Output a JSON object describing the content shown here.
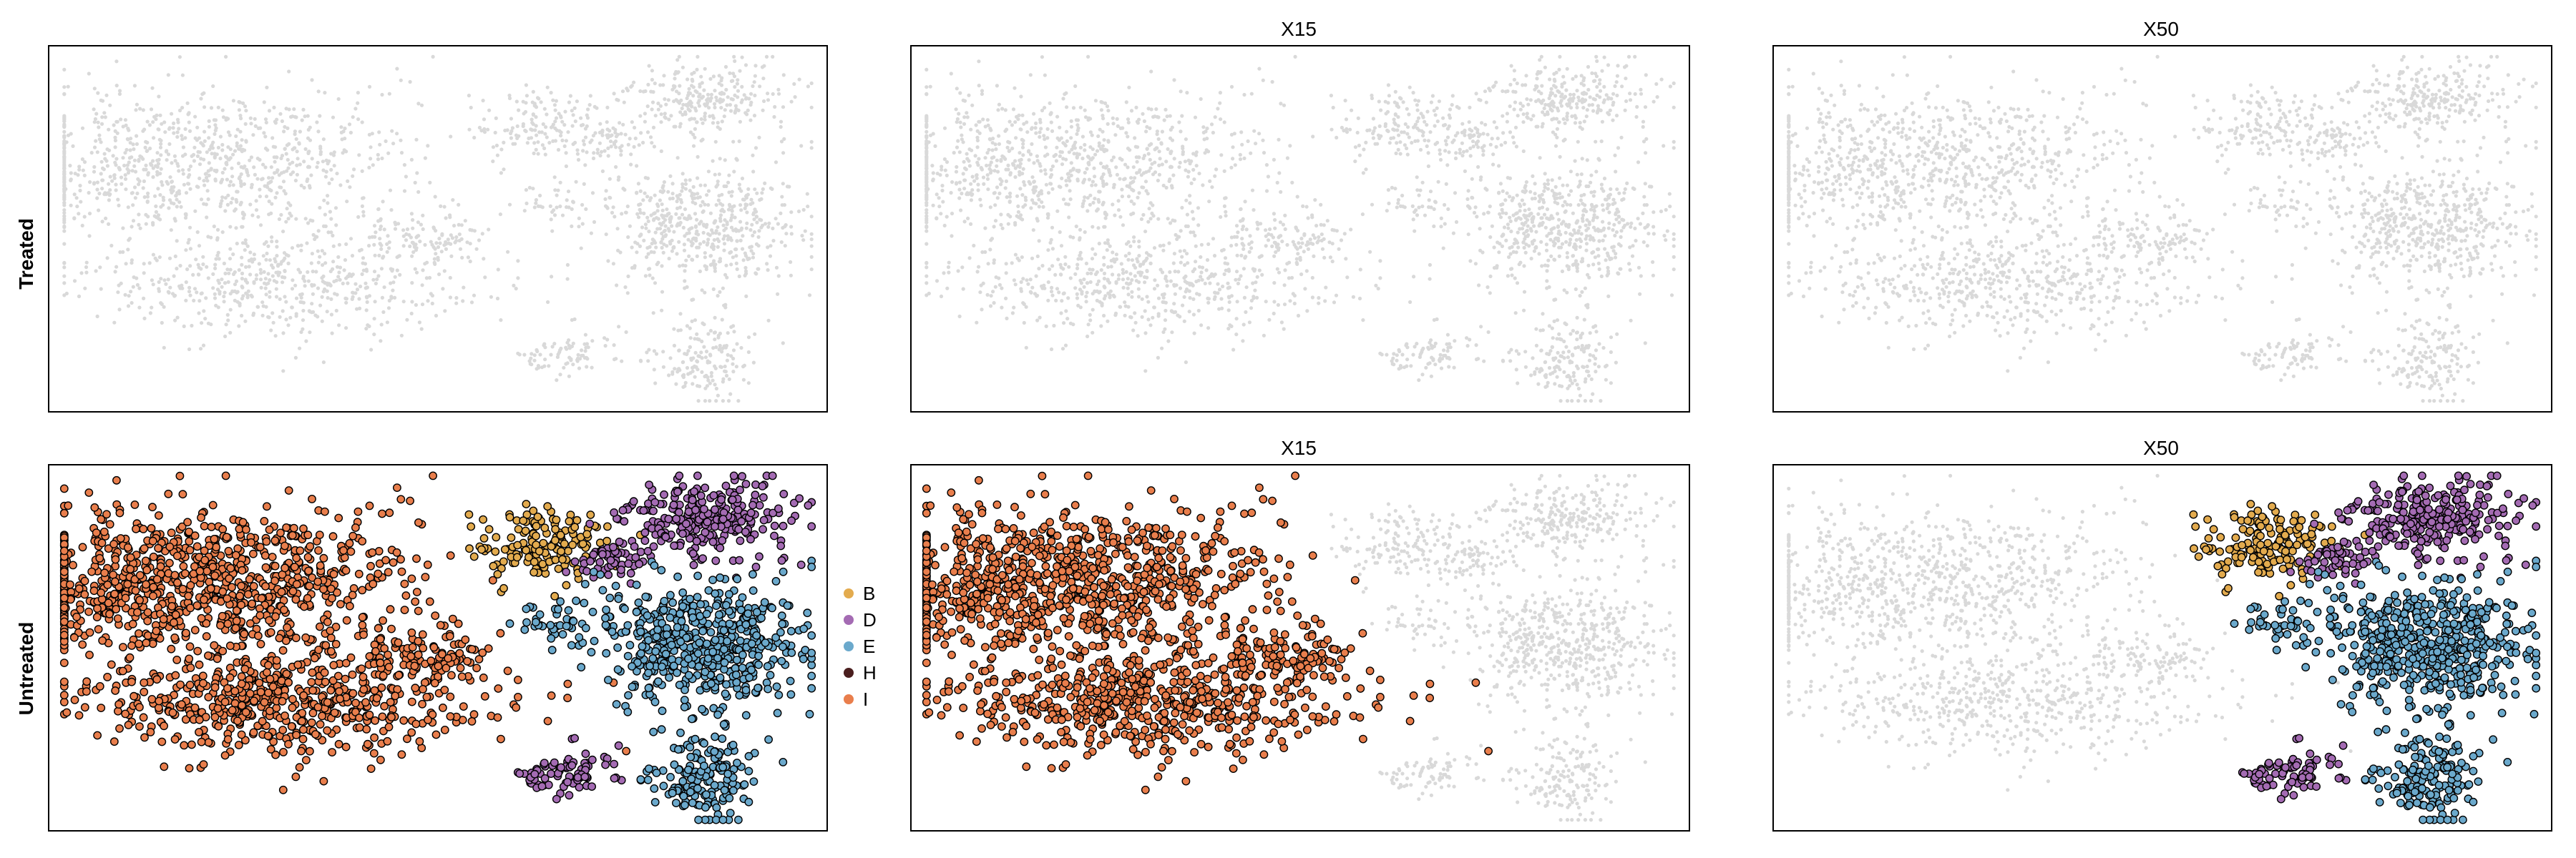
{
  "chart_data": {
    "type": "scatter",
    "description_style": "faceted UMAP-like scatter; grey background cells, colored clusters",
    "row_labels": [
      "Treated",
      "Untreated"
    ],
    "column_titles": [
      "",
      "X15",
      "X50"
    ],
    "legend": {
      "placement": "right-of-first-untreated-panel",
      "entries": [
        {
          "name": "B",
          "color": "#E3AB4E"
        },
        {
          "name": "D",
          "color": "#A46BB3"
        },
        {
          "name": "E",
          "color": "#6BA9CC"
        },
        {
          "name": "H",
          "color": "#4A1E1E"
        },
        {
          "name": "I",
          "color": "#E97E4C"
        }
      ]
    },
    "background_color": "#D9D9D9",
    "axes": {
      "xlim": [
        0,
        100
      ],
      "ylim": [
        0,
        100
      ],
      "ticks": false,
      "grid": false
    },
    "clusters": [
      {
        "id": "I_upper",
        "cx": 20,
        "cy": 68,
        "sx": 14,
        "sy": 10,
        "n": 900,
        "group": "I"
      },
      {
        "id": "I_lower",
        "cx": 30,
        "cy": 35,
        "sx": 13,
        "sy": 7.5,
        "n": 560,
        "group": "I"
      },
      {
        "id": "I_bridge",
        "cx": 48,
        "cy": 47,
        "sx": 4.5,
        "sy": 4,
        "n": 110,
        "group": "I"
      },
      {
        "id": "B_top",
        "cx": 63,
        "cy": 78,
        "sx": 4.5,
        "sy": 5,
        "n": 150,
        "group": "B"
      },
      {
        "id": "D_top",
        "cx": 72,
        "cy": 74,
        "sx": 3,
        "sy": 3,
        "n": 60,
        "group": "D"
      },
      {
        "id": "D_right",
        "cx": 85,
        "cy": 85,
        "sx": 5.5,
        "sy": 5.5,
        "n": 260,
        "group": "D"
      },
      {
        "id": "E_big",
        "cx": 84,
        "cy": 51,
        "sx": 6.5,
        "sy": 8,
        "n": 540,
        "group": "E"
      },
      {
        "id": "E_link",
        "cx": 66,
        "cy": 57,
        "sx": 2.5,
        "sy": 3,
        "n": 40,
        "group": "E"
      },
      {
        "id": "D_bottom",
        "cx": 66,
        "cy": 16,
        "sx": 3.5,
        "sy": 3.5,
        "n": 80,
        "group": "D"
      },
      {
        "id": "E_bottom",
        "cx": 84,
        "cy": 15,
        "sx": 3.5,
        "sy": 6.5,
        "n": 170,
        "group": "E"
      }
    ],
    "panels": [
      {
        "row": 0,
        "col": 0,
        "title": "",
        "highlighted_groups": []
      },
      {
        "row": 0,
        "col": 1,
        "title": "X15",
        "highlighted_groups": []
      },
      {
        "row": 0,
        "col": 2,
        "title": "X50",
        "highlighted_groups": []
      },
      {
        "row": 1,
        "col": 0,
        "title": "",
        "highlighted_groups": [
          "B",
          "D",
          "E",
          "H",
          "I"
        ]
      },
      {
        "row": 1,
        "col": 1,
        "title": "X15",
        "highlighted_groups": [
          "I"
        ]
      },
      {
        "row": 1,
        "col": 2,
        "title": "X50",
        "highlighted_groups": [
          "B",
          "D",
          "E",
          "H"
        ]
      }
    ]
  }
}
